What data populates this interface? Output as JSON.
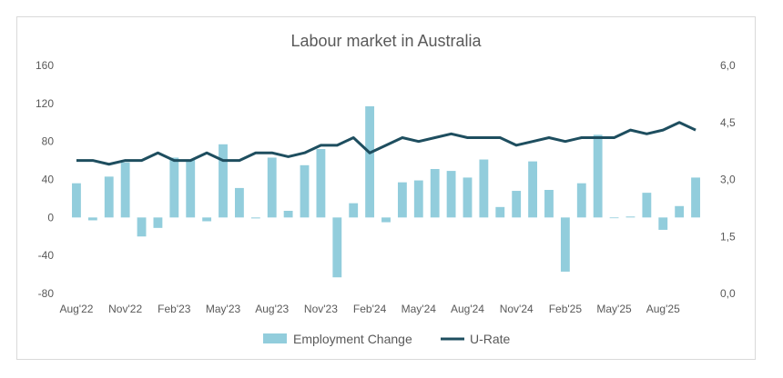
{
  "chart_data": {
    "type": "bar+line",
    "title": "Labour market in Australia",
    "x": [
      "Aug'22",
      "Sep'22",
      "Oct'22",
      "Nov'22",
      "Dec'22",
      "Jan'23",
      "Feb'23",
      "Mar'23",
      "Apr'23",
      "May'23",
      "Jun'23",
      "Jul'23",
      "Aug'23",
      "Sep'23",
      "Oct'23",
      "Nov'23",
      "Dec'23",
      "Jan'24",
      "Feb'24",
      "Mar'24",
      "Apr'24",
      "May'24",
      "Jun'24",
      "Jul'24",
      "Aug'24",
      "Sep'24",
      "Oct'24",
      "Nov'24",
      "Dec'24",
      "Jan'25",
      "Feb'25",
      "Mar'25",
      "Apr'25",
      "May'25",
      "Jun'25",
      "Jul'25",
      "Aug'25",
      "Sep'25",
      "Oct'25"
    ],
    "x_tick_labels": [
      "Aug'22",
      "Nov'22",
      "Feb'23",
      "May'23",
      "Aug'23",
      "Nov'23",
      "Feb'24",
      "May'24",
      "Aug'24",
      "Nov'24",
      "Feb'25",
      "May'25",
      "Aug'25"
    ],
    "series": [
      {
        "name": "Employment Change",
        "type": "bar",
        "axis": "left",
        "color": "#92cddc",
        "values": [
          36,
          -3,
          43,
          58,
          -20,
          -11,
          63,
          61,
          -4,
          77,
          31,
          -1,
          63,
          7,
          55,
          72,
          -63,
          15,
          117,
          -5,
          37,
          39,
          51,
          49,
          42,
          61,
          11,
          28,
          59,
          29,
          -57,
          36,
          87,
          0,
          1,
          26,
          -13,
          12,
          42
        ]
      },
      {
        "name": "U-Rate",
        "type": "line",
        "axis": "right",
        "color": "#1e4e5f",
        "values": [
          3.5,
          3.5,
          3.4,
          3.5,
          3.5,
          3.7,
          3.5,
          3.5,
          3.7,
          3.5,
          3.5,
          3.7,
          3.7,
          3.6,
          3.7,
          3.9,
          3.9,
          4.1,
          3.7,
          3.9,
          4.1,
          4.0,
          4.1,
          4.2,
          4.1,
          4.1,
          4.1,
          3.9,
          4.0,
          4.1,
          4.0,
          4.1,
          4.1,
          4.1,
          4.3,
          4.2,
          4.3,
          4.5,
          4.3
        ]
      }
    ],
    "y_left": {
      "min": -80,
      "max": 160,
      "step": 40,
      "tick_labels": [
        "-80",
        "-40",
        "0",
        "40",
        "80",
        "120",
        "160"
      ]
    },
    "y_right": {
      "min": 0,
      "max": 6,
      "step": 1.5,
      "tick_labels": [
        "0,0",
        "1,5",
        "3,0",
        "4,5",
        "6,0"
      ]
    },
    "grid": false,
    "legend": "bottom-center"
  }
}
